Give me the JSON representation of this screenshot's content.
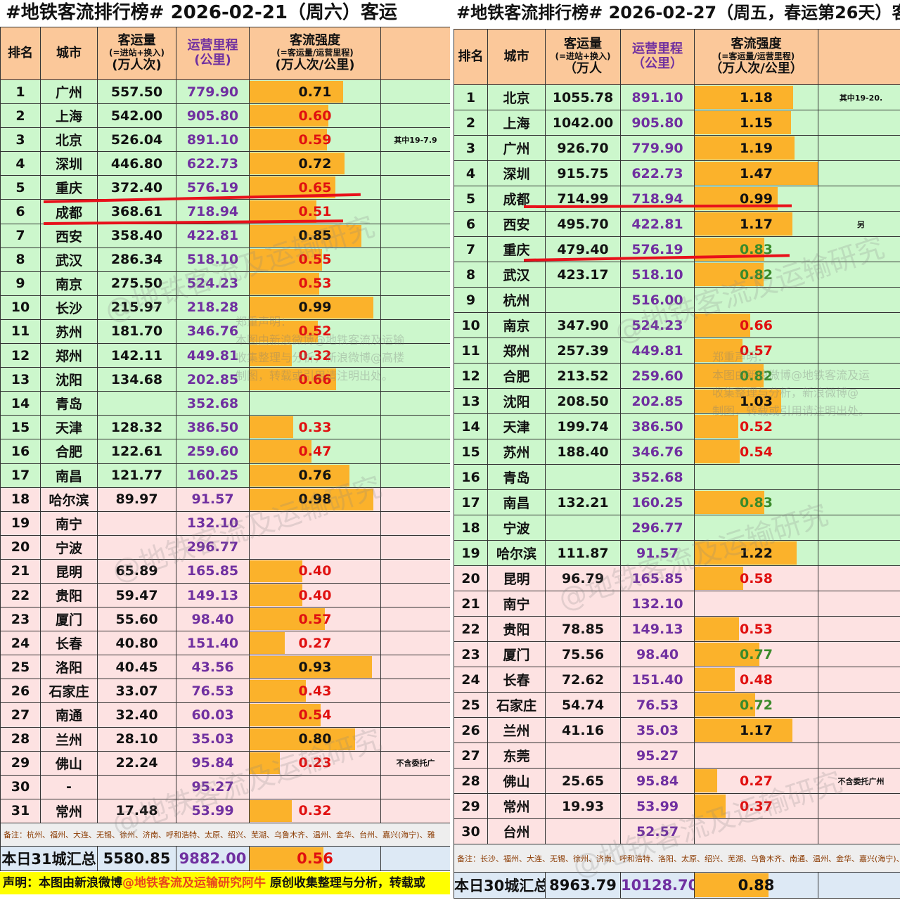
{
  "left": {
    "title": "#地铁客流排行榜# 2026-02-21（周六）客运",
    "headers": {
      "rank": "排名",
      "city": "城市",
      "volume": "客运量",
      "volume_sub": "(=进站+换入)",
      "volume_unit": "(万人次)",
      "mileage": "运营里程",
      "mileage_unit": "(公里)",
      "intensity": "客流强度",
      "intensity_sub": "(=客运量/运营里程)",
      "intensity_unit": "(万人次/公里)"
    },
    "rows": [
      {
        "rank": "1",
        "city": "广州",
        "volume": "557.50",
        "mileage": "779.90",
        "intensity": "0.71",
        "color": "#111111",
        "side": ""
      },
      {
        "rank": "2",
        "city": "上海",
        "volume": "542.00",
        "mileage": "905.80",
        "intensity": "0.60",
        "color": "#e01010",
        "side": ""
      },
      {
        "rank": "3",
        "city": "北京",
        "volume": "526.04",
        "mileage": "891.10",
        "intensity": "0.59",
        "color": "#e01010",
        "side": "其中19-7.9"
      },
      {
        "rank": "4",
        "city": "深圳",
        "volume": "446.80",
        "mileage": "622.73",
        "intensity": "0.72",
        "color": "#111111",
        "side": ""
      },
      {
        "rank": "5",
        "city": "重庆",
        "volume": "372.40",
        "mileage": "576.19",
        "intensity": "0.65",
        "color": "#e01010",
        "side": ""
      },
      {
        "rank": "6",
        "city": "成都",
        "volume": "368.61",
        "mileage": "718.94",
        "intensity": "0.51",
        "color": "#e01010",
        "side": ""
      },
      {
        "rank": "7",
        "city": "西安",
        "volume": "358.40",
        "mileage": "422.81",
        "intensity": "0.85",
        "color": "#111111",
        "side": ""
      },
      {
        "rank": "8",
        "city": "武汉",
        "volume": "286.34",
        "mileage": "518.10",
        "intensity": "0.55",
        "color": "#e01010",
        "side": ""
      },
      {
        "rank": "9",
        "city": "南京",
        "volume": "275.50",
        "mileage": "524.23",
        "intensity": "0.53",
        "color": "#e01010",
        "side": ""
      },
      {
        "rank": "10",
        "city": "长沙",
        "volume": "215.97",
        "mileage": "218.28",
        "intensity": "0.99",
        "color": "#111111",
        "side": ""
      },
      {
        "rank": "11",
        "city": "苏州",
        "volume": "181.70",
        "mileage": "346.76",
        "intensity": "0.52",
        "color": "#e01010",
        "side": ""
      },
      {
        "rank": "12",
        "city": "郑州",
        "volume": "142.11",
        "mileage": "449.81",
        "intensity": "0.32",
        "color": "#e01010",
        "side": ""
      },
      {
        "rank": "13",
        "city": "沈阳",
        "volume": "134.68",
        "mileage": "202.85",
        "intensity": "0.66",
        "color": "#e01010",
        "side": ""
      },
      {
        "rank": "14",
        "city": "青岛",
        "volume": "",
        "mileage": "352.68",
        "intensity": "",
        "color": "#111111",
        "side": ""
      },
      {
        "rank": "15",
        "city": "天津",
        "volume": "128.32",
        "mileage": "386.50",
        "intensity": "0.33",
        "color": "#e01010",
        "side": ""
      },
      {
        "rank": "16",
        "city": "合肥",
        "volume": "122.61",
        "mileage": "259.60",
        "intensity": "0.47",
        "color": "#e01010",
        "side": ""
      },
      {
        "rank": "17",
        "city": "南昌",
        "volume": "121.77",
        "mileage": "160.25",
        "intensity": "0.76",
        "color": "#111111",
        "side": ""
      },
      {
        "rank": "18",
        "city": "哈尔滨",
        "volume": "89.97",
        "mileage": "91.57",
        "intensity": "0.98",
        "color": "#111111",
        "side": ""
      },
      {
        "rank": "19",
        "city": "南宁",
        "volume": "",
        "mileage": "132.10",
        "intensity": "",
        "color": "#111111",
        "side": ""
      },
      {
        "rank": "20",
        "city": "宁波",
        "volume": "",
        "mileage": "296.77",
        "intensity": "",
        "color": "#111111",
        "side": ""
      },
      {
        "rank": "21",
        "city": "昆明",
        "volume": "65.89",
        "mileage": "165.85",
        "intensity": "0.40",
        "color": "#e01010",
        "side": ""
      },
      {
        "rank": "22",
        "city": "贵阳",
        "volume": "59.47",
        "mileage": "149.13",
        "intensity": "0.40",
        "color": "#e01010",
        "side": ""
      },
      {
        "rank": "23",
        "city": "厦门",
        "volume": "55.60",
        "mileage": "98.40",
        "intensity": "0.57",
        "color": "#e01010",
        "side": ""
      },
      {
        "rank": "24",
        "city": "长春",
        "volume": "40.80",
        "mileage": "151.40",
        "intensity": "0.27",
        "color": "#e01010",
        "side": ""
      },
      {
        "rank": "25",
        "city": "洛阳",
        "volume": "40.45",
        "mileage": "43.56",
        "intensity": "0.93",
        "color": "#111111",
        "side": ""
      },
      {
        "rank": "26",
        "city": "石家庄",
        "volume": "33.07",
        "mileage": "76.53",
        "intensity": "0.43",
        "color": "#e01010",
        "side": ""
      },
      {
        "rank": "27",
        "city": "南通",
        "volume": "32.40",
        "mileage": "60.03",
        "intensity": "0.54",
        "color": "#e01010",
        "side": ""
      },
      {
        "rank": "28",
        "city": "兰州",
        "volume": "28.10",
        "mileage": "35.03",
        "intensity": "0.80",
        "color": "#111111",
        "side": ""
      },
      {
        "rank": "29",
        "city": "佛山",
        "volume": "22.24",
        "mileage": "95.84",
        "intensity": "0.23",
        "color": "#e01010",
        "side": "不含委托广"
      },
      {
        "rank": "30",
        "city": "-",
        "volume": "",
        "mileage": "95.27",
        "intensity": "",
        "color": "#111111",
        "side": ""
      },
      {
        "rank": "31",
        "city": "常州",
        "volume": "17.48",
        "mileage": "53.99",
        "intensity": "0.32",
        "color": "#e01010",
        "side": ""
      }
    ],
    "green_rows": 17,
    "notes": "备注：杭州、福州、大连、无锡、徐州、济南、呼和浩特、太原、绍兴、芜湖、乌鲁木齐、温州、金华、台州、嘉兴(海宁)、雅",
    "total": {
      "label": "本日31城汇总",
      "volume": "5580.85",
      "mileage": "9882.00",
      "intensity": "0.56",
      "color": "#e01010"
    },
    "statement": {
      "prefix": "声明：本图由新浪微博",
      "handle": "@地铁客流及运输研究阿牛",
      "suffix": " 原创收集整理与分析，转载或"
    },
    "disclaimer": "郑重声明：\n本图由新浪微博@地铁客流及运输\n收集整理与分析，新浪微博@高楼\n制图，转载或引用请注明出处。"
  },
  "right": {
    "title": "#地铁客流排行榜# 2026-02-27（周五，春运第26天）客",
    "headers": {
      "rank": "排名",
      "city": "城市",
      "volume": "客运量",
      "volume_sub": "(=进站+换入)",
      "volume_unit": "（万人",
      "mileage": "运营里程",
      "mileage_unit": "（公里）",
      "intensity": "客流强度",
      "intensity_sub": "(=客运量/运营里程)",
      "intensity_unit": "（万人次/公里）"
    },
    "rows": [
      {
        "rank": "1",
        "city": "北京",
        "volume": "1055.78",
        "mileage": "891.10",
        "intensity": "1.18",
        "color": "#111111",
        "side": "其中19-20."
      },
      {
        "rank": "2",
        "city": "上海",
        "volume": "1042.00",
        "mileage": "905.80",
        "intensity": "1.15",
        "color": "#111111",
        "side": ""
      },
      {
        "rank": "3",
        "city": "广州",
        "volume": "926.70",
        "mileage": "779.90",
        "intensity": "1.19",
        "color": "#111111",
        "side": ""
      },
      {
        "rank": "4",
        "city": "深圳",
        "volume": "915.75",
        "mileage": "622.73",
        "intensity": "1.47",
        "color": "#111111",
        "side": ""
      },
      {
        "rank": "5",
        "city": "成都",
        "volume": "714.99",
        "mileage": "718.94",
        "intensity": "0.99",
        "color": "#111111",
        "side": ""
      },
      {
        "rank": "6",
        "city": "西安",
        "volume": "495.70",
        "mileage": "422.81",
        "intensity": "1.17",
        "color": "#111111",
        "side": "另"
      },
      {
        "rank": "7",
        "city": "重庆",
        "volume": "479.40",
        "mileage": "576.19",
        "intensity": "0.83",
        "color": "#3a8a2a",
        "side": ""
      },
      {
        "rank": "8",
        "city": "武汉",
        "volume": "423.17",
        "mileage": "518.10",
        "intensity": "0.82",
        "color": "#3a8a2a",
        "side": ""
      },
      {
        "rank": "9",
        "city": "杭州",
        "volume": "",
        "mileage": "516.00",
        "intensity": "",
        "color": "#111111",
        "side": ""
      },
      {
        "rank": "10",
        "city": "南京",
        "volume": "347.90",
        "mileage": "524.23",
        "intensity": "0.66",
        "color": "#e01010",
        "side": ""
      },
      {
        "rank": "11",
        "city": "郑州",
        "volume": "257.39",
        "mileage": "449.81",
        "intensity": "0.57",
        "color": "#e01010",
        "side": ""
      },
      {
        "rank": "12",
        "city": "合肥",
        "volume": "213.52",
        "mileage": "259.60",
        "intensity": "0.82",
        "color": "#3a8a2a",
        "side": ""
      },
      {
        "rank": "13",
        "city": "沈阳",
        "volume": "208.50",
        "mileage": "202.85",
        "intensity": "1.03",
        "color": "#111111",
        "side": ""
      },
      {
        "rank": "14",
        "city": "天津",
        "volume": "199.74",
        "mileage": "386.50",
        "intensity": "0.52",
        "color": "#e01010",
        "side": ""
      },
      {
        "rank": "15",
        "city": "苏州",
        "volume": "188.40",
        "mileage": "346.76",
        "intensity": "0.54",
        "color": "#e01010",
        "side": ""
      },
      {
        "rank": "16",
        "city": "青岛",
        "volume": "",
        "mileage": "352.68",
        "intensity": "",
        "color": "#111111",
        "side": ""
      },
      {
        "rank": "17",
        "city": "南昌",
        "volume": "132.21",
        "mileage": "160.25",
        "intensity": "0.83",
        "color": "#3a8a2a",
        "side": ""
      },
      {
        "rank": "18",
        "city": "宁波",
        "volume": "",
        "mileage": "296.77",
        "intensity": "",
        "color": "#111111",
        "side": ""
      },
      {
        "rank": "19",
        "city": "哈尔滨",
        "volume": "111.87",
        "mileage": "91.57",
        "intensity": "1.22",
        "color": "#111111",
        "side": ""
      },
      {
        "rank": "20",
        "city": "昆明",
        "volume": "96.79",
        "mileage": "165.85",
        "intensity": "0.58",
        "color": "#e01010",
        "side": ""
      },
      {
        "rank": "21",
        "city": "南宁",
        "volume": "",
        "mileage": "132.10",
        "intensity": "",
        "color": "#111111",
        "side": ""
      },
      {
        "rank": "22",
        "city": "贵阳",
        "volume": "78.85",
        "mileage": "149.13",
        "intensity": "0.53",
        "color": "#e01010",
        "side": ""
      },
      {
        "rank": "23",
        "city": "厦门",
        "volume": "75.56",
        "mileage": "98.40",
        "intensity": "0.77",
        "color": "#3a8a2a",
        "side": ""
      },
      {
        "rank": "24",
        "city": "长春",
        "volume": "72.62",
        "mileage": "151.40",
        "intensity": "0.48",
        "color": "#e01010",
        "side": ""
      },
      {
        "rank": "25",
        "city": "石家庄",
        "volume": "54.74",
        "mileage": "76.53",
        "intensity": "0.72",
        "color": "#3a8a2a",
        "side": ""
      },
      {
        "rank": "26",
        "city": "兰州",
        "volume": "41.16",
        "mileage": "35.03",
        "intensity": "1.17",
        "color": "#111111",
        "side": ""
      },
      {
        "rank": "27",
        "city": "东莞",
        "volume": "",
        "mileage": "95.27",
        "intensity": "",
        "color": "#111111",
        "side": ""
      },
      {
        "rank": "28",
        "city": "佛山",
        "volume": "25.65",
        "mileage": "95.84",
        "intensity": "0.27",
        "color": "#e01010",
        "side": "不含委托广州"
      },
      {
        "rank": "29",
        "city": "常州",
        "volume": "19.93",
        "mileage": "53.99",
        "intensity": "0.37",
        "color": "#e01010",
        "side": ""
      },
      {
        "rank": "30",
        "city": "台州",
        "volume": "",
        "mileage": "52.57",
        "intensity": "",
        "color": "#111111",
        "side": ""
      }
    ],
    "green_rows": 19,
    "notes": "备注：长沙、福州、大连、无锡、徐州、济南、呼和浩特、洛阳、太原、绍兴、芜湖、乌鲁木齐、南通、温州、金华、嘉兴(海宁)、滁州及香港、台北、",
    "total": {
      "label": "本日30城汇总",
      "volume": "8963.79",
      "mileage": "10128.70",
      "intensity": "0.88",
      "color": "#111111"
    },
    "disclaimer": "郑重声明：\n本图由新浪微博@地铁客流及运\n收集整理与分析，新浪微博@\n制图，转载或引用请注明出处。"
  },
  "watermark": "@地铁客流及运输研究",
  "colors": {
    "bar": "#fbb22b",
    "header": "#fbc89a",
    "green_row": "#ccf7cc",
    "pink_row": "#fde2e2",
    "highlight_line": "#e8101a"
  }
}
